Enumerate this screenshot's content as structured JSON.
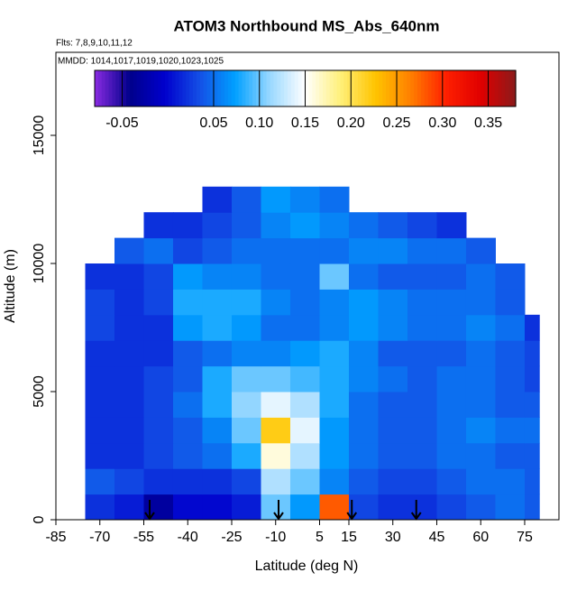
{
  "chart_data": {
    "type": "heatmap",
    "title": "ATOM3 Northbound MS_Abs_640nm",
    "subtitle": "Flts: 7,8,9,10,11,12",
    "annotation": "MMDD: 1014,1017,1019,1020,1023,1025",
    "xlabel": "Latitude (deg N)",
    "ylabel": "Altitude (m)",
    "xlim": [
      -85,
      86.7
    ],
    "xticks": [
      -85,
      -70,
      -55,
      -40,
      -25,
      -10,
      5,
      15,
      30,
      45,
      60,
      75
    ],
    "ylim": [
      0,
      18240
    ],
    "yticks": [
      0,
      5000,
      10000,
      15000
    ],
    "x_edges": [
      -75,
      -65,
      -55,
      -45,
      -35,
      -25,
      -15,
      -5,
      5,
      15,
      25,
      35,
      45,
      55,
      65,
      75,
      80
    ],
    "y_edges": [
      0,
      1000,
      2000,
      3000,
      4000,
      5000,
      6000,
      7000,
      8000,
      9000,
      10000,
      11000,
      12000,
      13000
    ],
    "values": [
      [
        0.02,
        0.01,
        -0.03,
        0.0,
        0.0,
        0.01,
        0.1,
        0.07,
        0.28,
        0.03,
        0.02,
        0.02,
        0.03,
        0.04,
        0.05,
        0.04
      ],
      [
        0.04,
        0.03,
        0.02,
        0.02,
        0.02,
        0.03,
        0.12,
        0.1,
        0.06,
        0.04,
        0.03,
        0.03,
        0.04,
        0.05,
        0.05,
        0.04
      ],
      [
        0.02,
        0.02,
        0.03,
        0.04,
        0.05,
        0.08,
        0.16,
        0.12,
        0.07,
        0.05,
        0.04,
        0.04,
        0.05,
        0.05,
        0.04,
        0.04
      ],
      [
        0.02,
        0.02,
        0.03,
        0.04,
        0.06,
        0.1,
        0.22,
        0.14,
        0.07,
        0.05,
        0.04,
        0.04,
        0.05,
        0.06,
        0.05,
        0.05
      ],
      [
        0.02,
        0.02,
        0.03,
        0.05,
        0.08,
        0.11,
        0.14,
        0.12,
        0.08,
        0.05,
        0.04,
        0.04,
        0.05,
        0.05,
        0.04,
        0.04
      ],
      [
        0.02,
        0.02,
        0.03,
        0.04,
        0.08,
        0.1,
        0.1,
        0.09,
        0.08,
        0.06,
        0.05,
        0.04,
        0.05,
        0.05,
        0.04,
        0.03
      ],
      [
        0.02,
        0.02,
        0.02,
        0.04,
        0.05,
        0.06,
        0.06,
        0.07,
        0.08,
        0.06,
        0.04,
        0.04,
        0.04,
        0.05,
        0.04,
        0.03
      ],
      [
        0.03,
        0.02,
        0.02,
        0.07,
        0.08,
        0.07,
        0.05,
        0.05,
        0.06,
        0.07,
        0.06,
        0.05,
        0.05,
        0.06,
        0.05,
        0.02
      ],
      [
        0.03,
        0.02,
        0.03,
        0.08,
        0.08,
        0.08,
        0.06,
        0.05,
        0.06,
        0.07,
        0.06,
        0.05,
        0.05,
        0.05,
        0.04,
        null
      ],
      [
        0.02,
        0.02,
        0.03,
        0.07,
        0.06,
        0.06,
        0.05,
        0.05,
        0.1,
        0.05,
        0.04,
        0.04,
        0.04,
        0.05,
        0.04,
        null
      ],
      [
        null,
        0.04,
        0.05,
        0.03,
        0.04,
        0.05,
        0.05,
        0.05,
        0.05,
        0.06,
        0.06,
        0.05,
        0.05,
        0.04,
        null,
        null
      ],
      [
        null,
        null,
        0.02,
        0.02,
        0.03,
        0.04,
        0.06,
        0.07,
        0.06,
        0.05,
        0.04,
        0.03,
        0.02,
        null,
        null,
        null
      ],
      [
        null,
        null,
        null,
        null,
        0.02,
        0.04,
        0.07,
        0.06,
        0.05,
        null,
        null,
        null,
        null,
        null,
        null,
        null
      ]
    ],
    "markers_x": [
      -53,
      -9,
      16,
      38
    ],
    "clim": [
      -0.08,
      0.38
    ],
    "colorbar_ticks": [
      -0.05,
      0.05,
      {
        "value": 0.1,
        "label": "0.10"
      },
      0.15,
      {
        "value": 0.2,
        "label": "0.20"
      },
      0.25,
      {
        "value": 0.3,
        "label": "0.30"
      },
      0.35
    ],
    "colors": [
      "#8a2be2",
      "#00008b",
      "#0000cd",
      "#1450e6",
      "#00a0ff",
      "#9ad8ff",
      "#ffffff",
      "#fff07a",
      "#ffc400",
      "#ff8000",
      "#ff2000",
      "#e00000",
      "#8b1a1a"
    ]
  }
}
